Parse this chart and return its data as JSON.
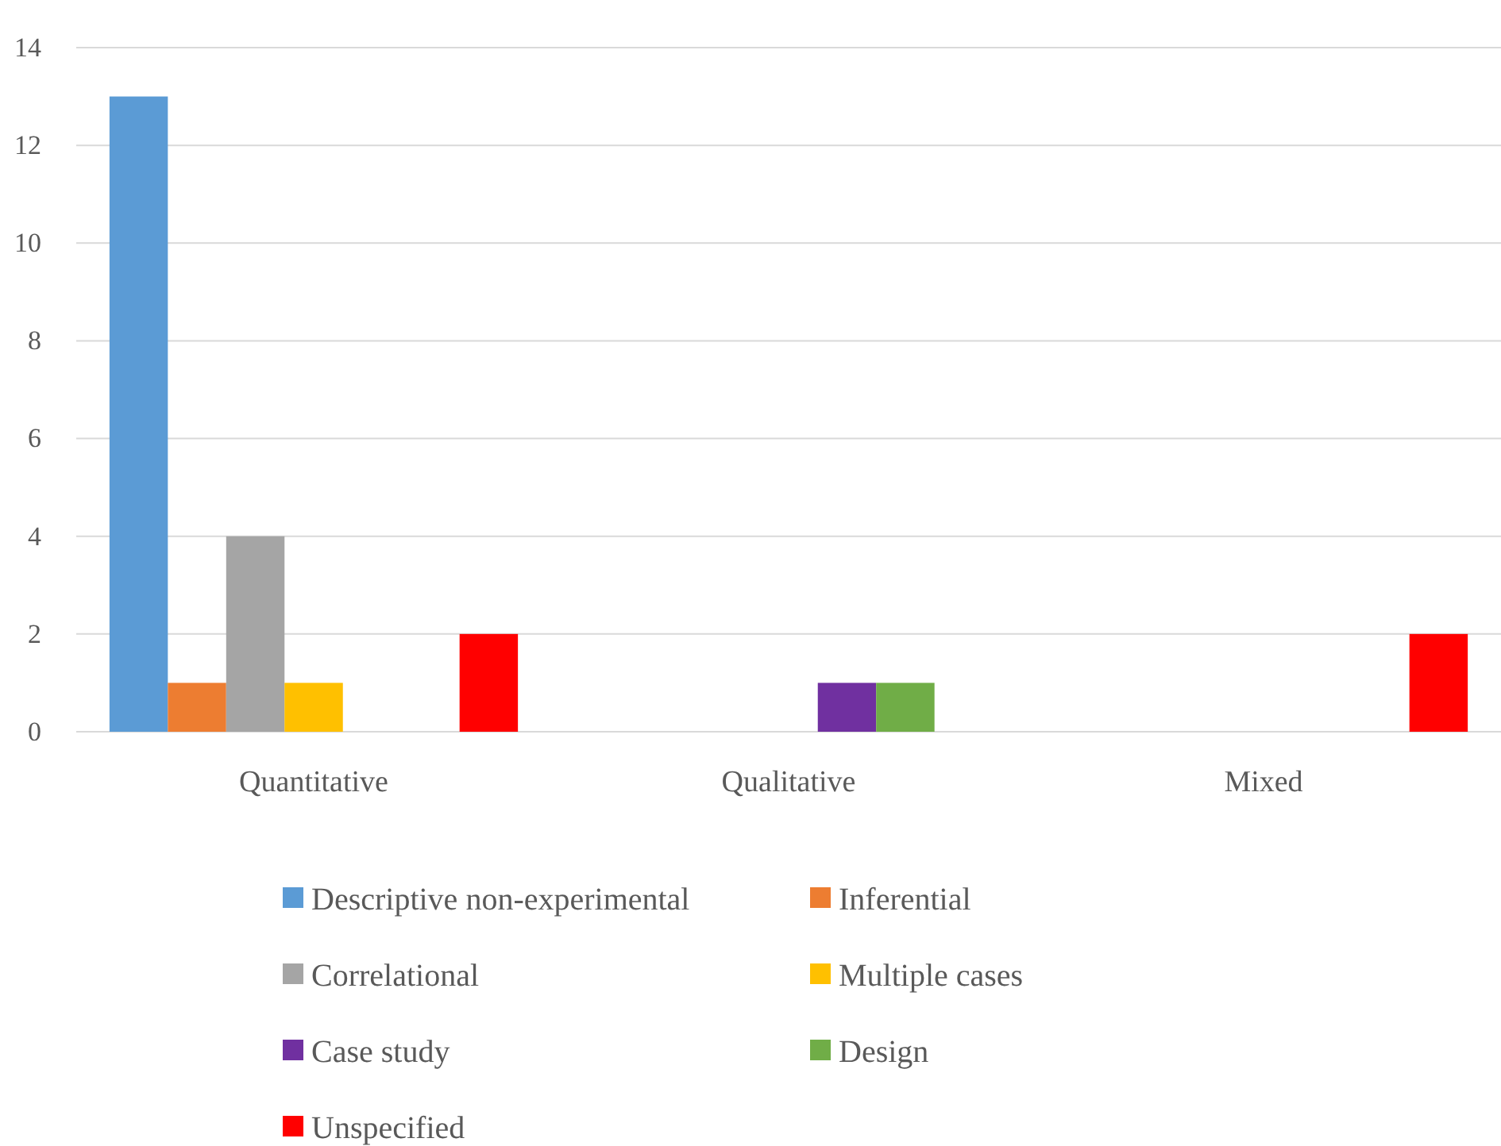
{
  "chart_data": {
    "type": "bar",
    "categories": [
      "Quantitative",
      "Qualitative",
      "Mixed"
    ],
    "series": [
      {
        "name": "Descriptive non-experimental",
        "color": "#5b9bd5",
        "values": [
          13,
          0,
          0
        ]
      },
      {
        "name": "Inferential",
        "color": "#ed7d31",
        "values": [
          1,
          0,
          0
        ]
      },
      {
        "name": "Correlational",
        "color": "#a5a5a5",
        "values": [
          4,
          0,
          0
        ]
      },
      {
        "name": "Multiple cases",
        "color": "#ffc000",
        "values": [
          1,
          0,
          0
        ]
      },
      {
        "name": "Case study",
        "color": "#7030a0",
        "values": [
          0,
          1,
          0
        ]
      },
      {
        "name": "Design",
        "color": "#70ad47",
        "values": [
          0,
          1,
          0
        ]
      },
      {
        "name": "Unspecified",
        "color": "#ff0000",
        "values": [
          2,
          0,
          2
        ]
      }
    ],
    "ylim": [
      0,
      14
    ],
    "yticks": [
      0,
      2,
      4,
      6,
      8,
      10,
      12,
      14
    ],
    "grid": "y",
    "legend": "bottom"
  }
}
